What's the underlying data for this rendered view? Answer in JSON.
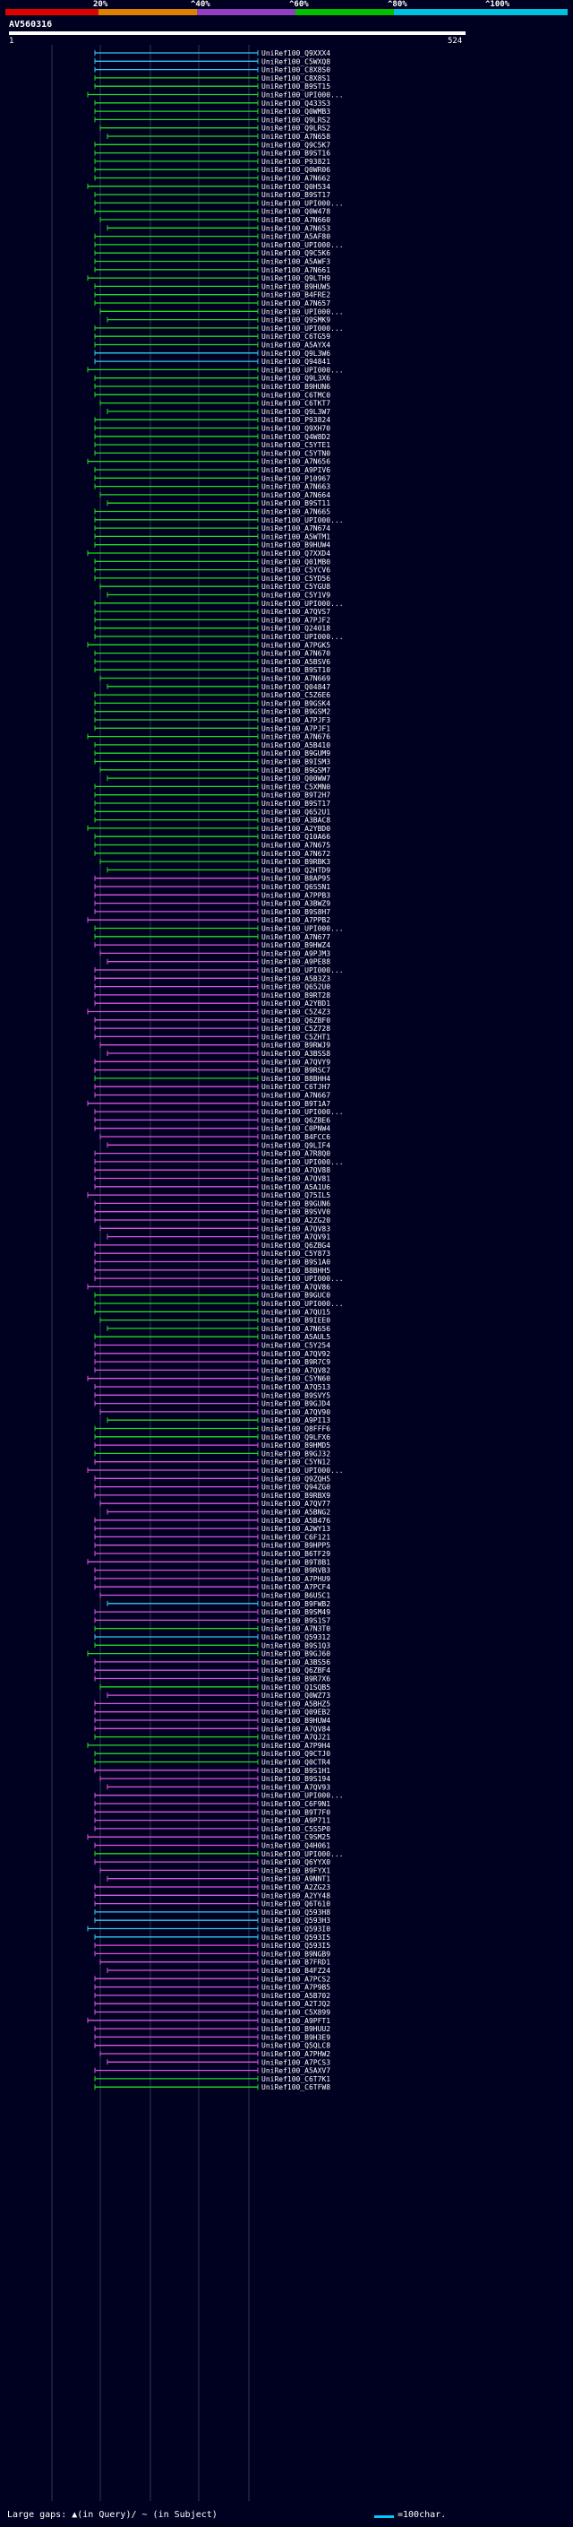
{
  "percent_scale": {
    "labels": [
      "20%",
      "^40%",
      "^60%",
      "^80%",
      "^100%"
    ],
    "colors": [
      "#e00000",
      "#e08000",
      "#9040c0",
      "#00c000",
      "#00c0e0"
    ]
  },
  "query": {
    "title": "AV560316",
    "start": "1",
    "end": "524"
  },
  "colors": {
    "background": "#000021",
    "green": "#22dd22",
    "cyan": "#33ccee",
    "magenta": "#dd55dd",
    "gap_dot": "#ffffff"
  },
  "hits": [
    {
      "label": "UniRef100_Q9XXX4",
      "type": "cyan"
    },
    {
      "label": "UniRef100_C5WXQ8",
      "type": "cyan"
    },
    {
      "label": "UniRef100_C8X8S0",
      "type": "cyan"
    },
    {
      "label": "UniRef100_C8X8S1",
      "type": "green"
    },
    {
      "label": "UniRef100_B9ST15",
      "type": "green"
    },
    {
      "label": "UniRef100_UPI000...",
      "type": "green"
    },
    {
      "label": "UniRef100_Q433S3",
      "type": "green"
    },
    {
      "label": "UniRef100_Q0WMB3",
      "type": "green"
    },
    {
      "label": "UniRef100_Q9LRS2",
      "type": "green"
    },
    {
      "label": "UniRef100_Q9LRS2",
      "type": "green"
    },
    {
      "label": "UniRef100_A7N658",
      "type": "green"
    },
    {
      "label": "UniRef100_Q9C5K7",
      "type": "green"
    },
    {
      "label": "UniRef100_B9ST16",
      "type": "green"
    },
    {
      "label": "UniRef100_P93821",
      "type": "green"
    },
    {
      "label": "UniRef100_Q0WR06",
      "type": "green"
    },
    {
      "label": "UniRef100_A7N662",
      "type": "green"
    },
    {
      "label": "UniRef100_Q0H534",
      "type": "green"
    },
    {
      "label": "UniRef100_B9ST17",
      "type": "green"
    },
    {
      "label": "UniRef100_UPI000...",
      "type": "green"
    },
    {
      "label": "UniRef100_Q0W478",
      "type": "green"
    },
    {
      "label": "UniRef100_A7N660",
      "type": "green"
    },
    {
      "label": "UniRef100_A7N653",
      "type": "green"
    },
    {
      "label": "UniRef100_A5AF80",
      "type": "green"
    },
    {
      "label": "UniRef100_UPI000...",
      "type": "green"
    },
    {
      "label": "UniRef100_Q9C5K6",
      "type": "green"
    },
    {
      "label": "UniRef100_A5AWF3",
      "type": "green"
    },
    {
      "label": "UniRef100_A7N661",
      "type": "green"
    },
    {
      "label": "UniRef100_Q9LTH9",
      "type": "green"
    },
    {
      "label": "UniRef100_B9HUW5",
      "type": "green"
    },
    {
      "label": "UniRef100_B4FRE2",
      "type": "green"
    },
    {
      "label": "UniRef100_A7N657",
      "type": "green"
    },
    {
      "label": "UniRef100_UPI000...",
      "type": "green"
    },
    {
      "label": "UniRef100_Q9SMK9",
      "type": "green"
    },
    {
      "label": "UniRef100_UPI000...",
      "type": "green"
    },
    {
      "label": "UniRef100_C6TG59",
      "type": "green"
    },
    {
      "label": "UniRef100_A5AYX4",
      "type": "green"
    },
    {
      "label": "UniRef100_Q9L3W6",
      "type": "cyan"
    },
    {
      "label": "UniRef100_Q94841",
      "type": "cyan"
    },
    {
      "label": "UniRef100_UPI000...",
      "type": "green"
    },
    {
      "label": "UniRef100_Q9L3X6",
      "type": "green"
    },
    {
      "label": "UniRef100_B9HUN6",
      "type": "green"
    },
    {
      "label": "UniRef100_C6TMC0",
      "type": "green"
    },
    {
      "label": "UniRef100_C6TKT7",
      "type": "green"
    },
    {
      "label": "UniRef100_Q9L3W7",
      "type": "green"
    },
    {
      "label": "UniRef100_P93824",
      "type": "green"
    },
    {
      "label": "UniRef100_Q9XH70",
      "type": "green"
    },
    {
      "label": "UniRef100_Q4W8D2",
      "type": "green"
    },
    {
      "label": "UniRef100_C5YTE1",
      "type": "green"
    },
    {
      "label": "UniRef100_C5YTN0",
      "type": "green"
    },
    {
      "label": "UniRef100_A7N656",
      "type": "green"
    },
    {
      "label": "UniRef100_A9PIV6",
      "type": "green"
    },
    {
      "label": "UniRef100_P10967",
      "type": "green"
    },
    {
      "label": "UniRef100_A7N663",
      "type": "green"
    },
    {
      "label": "UniRef100_A7N664",
      "type": "green"
    },
    {
      "label": "UniRef100_B9ST11",
      "type": "green"
    },
    {
      "label": "UniRef100_A7N665",
      "type": "green"
    },
    {
      "label": "UniRef100_UPI000...",
      "type": "green"
    },
    {
      "label": "UniRef100_A7N674",
      "type": "green"
    },
    {
      "label": "UniRef100_A5WTM1",
      "type": "green"
    },
    {
      "label": "UniRef100_B9HUW4",
      "type": "green"
    },
    {
      "label": "UniRef100_Q7XXD4",
      "type": "green"
    },
    {
      "label": "UniRef100_Q01MB0",
      "type": "green"
    },
    {
      "label": "UniRef100_C5YCV6",
      "type": "green"
    },
    {
      "label": "UniRef100_C5YD56",
      "type": "green"
    },
    {
      "label": "UniRef100_C5YGU8",
      "type": "green"
    },
    {
      "label": "UniRef100_C5Y1V9",
      "type": "green"
    },
    {
      "label": "UniRef100_UPI000...",
      "type": "green"
    },
    {
      "label": "UniRef100_A7QVS7",
      "type": "green"
    },
    {
      "label": "UniRef100_A7PJF2",
      "type": "green"
    },
    {
      "label": "UniRef100_Q24018",
      "type": "green"
    },
    {
      "label": "UniRef100_UPI000...",
      "type": "green"
    },
    {
      "label": "UniRef100_A7PGK5",
      "type": "green"
    },
    {
      "label": "UniRef100_A7N670",
      "type": "green"
    },
    {
      "label": "UniRef100_A5BSV6",
      "type": "green"
    },
    {
      "label": "UniRef100_B9ST10",
      "type": "green"
    },
    {
      "label": "UniRef100_A7N669",
      "type": "green"
    },
    {
      "label": "UniRef100_Q04847",
      "type": "green"
    },
    {
      "label": "UniRef100_C5Z6E6",
      "type": "green"
    },
    {
      "label": "UniRef100_B9GSK4",
      "type": "green"
    },
    {
      "label": "UniRef100_B9GSM2",
      "type": "green"
    },
    {
      "label": "UniRef100_A7PJF3",
      "type": "green"
    },
    {
      "label": "UniRef100_A7PJF1",
      "type": "green"
    },
    {
      "label": "UniRef100_A7N676",
      "type": "green"
    },
    {
      "label": "UniRef100_A5B410",
      "type": "green"
    },
    {
      "label": "UniRef100_B9GUM9",
      "type": "green"
    },
    {
      "label": "UniRef100_B9ISM3",
      "type": "green"
    },
    {
      "label": "UniRef100_B9GSM7",
      "type": "green"
    },
    {
      "label": "UniRef100_Q00WW7",
      "type": "green"
    },
    {
      "label": "UniRef100_C5XMN0",
      "type": "green"
    },
    {
      "label": "UniRef100_B9T2H7",
      "type": "green"
    },
    {
      "label": "UniRef100_B9ST17",
      "type": "green"
    },
    {
      "label": "UniRef100_Q652U1",
      "type": "green"
    },
    {
      "label": "UniRef100_A3BAC8",
      "type": "green"
    },
    {
      "label": "UniRef100_A2YBD0",
      "type": "green"
    },
    {
      "label": "UniRef100_Q10A66",
      "type": "green"
    },
    {
      "label": "UniRef100_A7N675",
      "type": "green"
    },
    {
      "label": "UniRef100_A7N672",
      "type": "green"
    },
    {
      "label": "UniRef100_B9RBK3",
      "type": "green"
    },
    {
      "label": "UniRef100_Q2HTD9",
      "type": "green"
    },
    {
      "label": "UniRef100_B8AP95",
      "type": "magenta"
    },
    {
      "label": "UniRef100_Q6S5N1",
      "type": "magenta"
    },
    {
      "label": "UniRef100_A7PPB3",
      "type": "magenta"
    },
    {
      "label": "UniRef100_A3BWZ9",
      "type": "magenta"
    },
    {
      "label": "UniRef100_B9S8H7",
      "type": "magenta"
    },
    {
      "label": "UniRef100_A7PPB2",
      "type": "magenta"
    },
    {
      "label": "UniRef100_UPI000...",
      "type": "green"
    },
    {
      "label": "UniRef100_A7N677",
      "type": "green"
    },
    {
      "label": "UniRef100_B9HWZ4",
      "type": "magenta"
    },
    {
      "label": "UniRef100_A9PJM3",
      "type": "magenta"
    },
    {
      "label": "UniRef100_A9PE88",
      "type": "magenta"
    },
    {
      "label": "UniRef100_UPI000...",
      "type": "magenta"
    },
    {
      "label": "UniRef100_A5B3Z3",
      "type": "magenta"
    },
    {
      "label": "UniRef100_Q652U0",
      "type": "magenta"
    },
    {
      "label": "UniRef100_B9RT28",
      "type": "magenta"
    },
    {
      "label": "UniRef100_A2YBD1",
      "type": "magenta"
    },
    {
      "label": "UniRef100_C5Z4Z3",
      "type": "magenta"
    },
    {
      "label": "UniRef100_Q6ZBF0",
      "type": "magenta"
    },
    {
      "label": "UniRef100_C5Z728",
      "type": "magenta"
    },
    {
      "label": "UniRef100_C5ZHT1",
      "type": "magenta"
    },
    {
      "label": "UniRef100_B9RWJ9",
      "type": "magenta"
    },
    {
      "label": "UniRef100_A3BSS8",
      "type": "magenta"
    },
    {
      "label": "UniRef100_A7QVY9",
      "type": "magenta"
    },
    {
      "label": "UniRef100_B9RSC7",
      "type": "magenta"
    },
    {
      "label": "UniRef100_B8BHH4",
      "type": "green"
    },
    {
      "label": "UniRef100_C6TJH7",
      "type": "magenta"
    },
    {
      "label": "UniRef100_A7N667",
      "type": "magenta"
    },
    {
      "label": "UniRef100_B9T1A7",
      "type": "magenta"
    },
    {
      "label": "UniRef100_UPI000...",
      "type": "magenta"
    },
    {
      "label": "UniRef100_Q6ZBE6",
      "type": "magenta"
    },
    {
      "label": "UniRef100_C0PNW4",
      "type": "magenta"
    },
    {
      "label": "UniRef100_B4FCC6",
      "type": "magenta"
    },
    {
      "label": "UniRef100_Q9LIF4",
      "type": "magenta"
    },
    {
      "label": "UniRef100_A7R8Q0",
      "type": "magenta"
    },
    {
      "label": "UniRef100_UPI000...",
      "type": "magenta"
    },
    {
      "label": "UniRef100_A7QV88",
      "type": "magenta"
    },
    {
      "label": "UniRef100_A7QV81",
      "type": "magenta"
    },
    {
      "label": "UniRef100_A5A1U6",
      "type": "magenta"
    },
    {
      "label": "UniRef100_Q75IL5",
      "type": "magenta"
    },
    {
      "label": "UniRef100_B9GUN6",
      "type": "magenta"
    },
    {
      "label": "UniRef100_B9SVV0",
      "type": "magenta"
    },
    {
      "label": "UniRef100_A2ZG20",
      "type": "magenta"
    },
    {
      "label": "UniRef100_A7QV83",
      "type": "magenta"
    },
    {
      "label": "UniRef100_A7QV91",
      "type": "magenta"
    },
    {
      "label": "UniRef100_Q6ZBG4",
      "type": "magenta"
    },
    {
      "label": "UniRef100_C5Y873",
      "type": "magenta"
    },
    {
      "label": "UniRef100_B9S1A0",
      "type": "magenta"
    },
    {
      "label": "UniRef100_B8BHH5",
      "type": "magenta"
    },
    {
      "label": "UniRef100_UPI000...",
      "type": "magenta"
    },
    {
      "label": "UniRef100_A7QV86",
      "type": "magenta"
    },
    {
      "label": "UniRef100_B9GUC0",
      "type": "green"
    },
    {
      "label": "UniRef100_UPI000...",
      "type": "green"
    },
    {
      "label": "UniRef100_A7QU15",
      "type": "green"
    },
    {
      "label": "UniRef100_B9IEE0",
      "type": "green"
    },
    {
      "label": "UniRef100_A7N656",
      "type": "green"
    },
    {
      "label": "UniRef100_A5AUL5",
      "type": "green"
    },
    {
      "label": "UniRef100_C5Y254",
      "type": "magenta"
    },
    {
      "label": "UniRef100_A7QV92",
      "type": "magenta"
    },
    {
      "label": "UniRef100_B9R7C9",
      "type": "magenta"
    },
    {
      "label": "UniRef100_A7QV82",
      "type": "magenta"
    },
    {
      "label": "UniRef100_C5YN60",
      "type": "magenta"
    },
    {
      "label": "UniRef100_A7Q513",
      "type": "magenta"
    },
    {
      "label": "UniRef100_B9SVY5",
      "type": "magenta"
    },
    {
      "label": "UniRef100_B9GJD4",
      "type": "magenta"
    },
    {
      "label": "UniRef100_A7QV90",
      "type": "magenta"
    },
    {
      "label": "UniRef100_A9PI13",
      "type": "green"
    },
    {
      "label": "UniRef100_Q8FFF6",
      "type": "green"
    },
    {
      "label": "UniRef100_Q9LFX6",
      "type": "green"
    },
    {
      "label": "UniRef100_B9HMD5",
      "type": "magenta"
    },
    {
      "label": "UniRef100_B9GJ32",
      "type": "green"
    },
    {
      "label": "UniRef100_C5YN12",
      "type": "magenta"
    },
    {
      "label": "UniRef100_UPI000...",
      "type": "magenta"
    },
    {
      "label": "UniRef100_Q9ZQH5",
      "type": "magenta"
    },
    {
      "label": "UniRef100_Q94ZG0",
      "type": "magenta"
    },
    {
      "label": "UniRef100_B9RBX9",
      "type": "magenta"
    },
    {
      "label": "UniRef100_A7QV77",
      "type": "magenta"
    },
    {
      "label": "UniRef100_A5BNG2",
      "type": "magenta"
    },
    {
      "label": "UniRef100_A5B476",
      "type": "magenta"
    },
    {
      "label": "UniRef100_A2WY13",
      "type": "magenta"
    },
    {
      "label": "UniRef100_C6F121",
      "type": "magenta"
    },
    {
      "label": "UniRef100_B9HPP5",
      "type": "magenta"
    },
    {
      "label": "UniRef100_B6TF29",
      "type": "magenta"
    },
    {
      "label": "UniRef100_B9T8B1",
      "type": "magenta"
    },
    {
      "label": "UniRef100_B9RVB3",
      "type": "magenta"
    },
    {
      "label": "UniRef100_A7PHU9",
      "type": "magenta"
    },
    {
      "label": "UniRef100_A7PCF4",
      "type": "magenta"
    },
    {
      "label": "UniRef100_B6U5C1",
      "type": "magenta"
    },
    {
      "label": "UniRef100_B9FWB2",
      "type": "cyan"
    },
    {
      "label": "UniRef100_B9SM49",
      "type": "magenta"
    },
    {
      "label": "UniRef100_B9S1S7",
      "type": "magenta"
    },
    {
      "label": "UniRef100_A7N3T0",
      "type": "green"
    },
    {
      "label": "UniRef100_Q59312",
      "type": "cyan"
    },
    {
      "label": "UniRef100_B9S1Q3",
      "type": "green"
    },
    {
      "label": "UniRef100_B9GJ60",
      "type": "green"
    },
    {
      "label": "UniRef100_A3BS56",
      "type": "magenta"
    },
    {
      "label": "UniRef100_Q6ZBF4",
      "type": "magenta"
    },
    {
      "label": "UniRef100_B9R7X6",
      "type": "magenta"
    },
    {
      "label": "UniRef100_Q1SQB5",
      "type": "green"
    },
    {
      "label": "UniRef100_Q0WZ73",
      "type": "magenta"
    },
    {
      "label": "UniRef100_A5BHZ5",
      "type": "magenta"
    },
    {
      "label": "UniRef100_Q09EB2",
      "type": "magenta"
    },
    {
      "label": "UniRef100_B9HUW4",
      "type": "magenta"
    },
    {
      "label": "UniRef100_A7QV84",
      "type": "magenta"
    },
    {
      "label": "UniRef100_A7QJ21",
      "type": "green"
    },
    {
      "label": "UniRef100_A7P9H4",
      "type": "green"
    },
    {
      "label": "UniRef100_Q9CTJ0",
      "type": "green"
    },
    {
      "label": "UniRef100_Q0CTR4",
      "type": "green"
    },
    {
      "label": "UniRef100_B9S1H1",
      "type": "magenta"
    },
    {
      "label": "UniRef100_B9S194",
      "type": "magenta"
    },
    {
      "label": "UniRef100_A7QV93",
      "type": "magenta"
    },
    {
      "label": "UniRef100_UPI000...",
      "type": "magenta"
    },
    {
      "label": "UniRef100_C6F9N1",
      "type": "magenta"
    },
    {
      "label": "UniRef100_B9T7F0",
      "type": "magenta"
    },
    {
      "label": "UniRef100_A9P711",
      "type": "magenta"
    },
    {
      "label": "UniRef100_C5S5P0",
      "type": "magenta"
    },
    {
      "label": "UniRef100_C9SM25",
      "type": "magenta"
    },
    {
      "label": "UniRef100_Q4H061",
      "type": "magenta"
    },
    {
      "label": "UniRef100_UPI000...",
      "type": "green"
    },
    {
      "label": "UniRef100_Q6YYX0",
      "type": "magenta"
    },
    {
      "label": "UniRef100_B9FYX1",
      "type": "magenta"
    },
    {
      "label": "UniRef100_A9NNT1",
      "type": "magenta"
    },
    {
      "label": "UniRef100_A2ZG23",
      "type": "magenta"
    },
    {
      "label": "UniRef100_A2YY48",
      "type": "magenta"
    },
    {
      "label": "UniRef100_Q6T610",
      "type": "magenta"
    },
    {
      "label": "UniRef100_Q593H8",
      "type": "cyan"
    },
    {
      "label": "UniRef100_Q593H3",
      "type": "cyan"
    },
    {
      "label": "UniRef100_Q593I0",
      "type": "cyan"
    },
    {
      "label": "UniRef100_Q593I5",
      "type": "cyan"
    },
    {
      "label": "UniRef100_Q593I5",
      "type": "magenta"
    },
    {
      "label": "UniRef100_B9NGB9",
      "type": "magenta"
    },
    {
      "label": "UniRef100_B7FRD1",
      "type": "magenta"
    },
    {
      "label": "UniRef100_B4FZ24",
      "type": "magenta"
    },
    {
      "label": "UniRef100_A7PCS2",
      "type": "magenta"
    },
    {
      "label": "UniRef100_A7P9B5",
      "type": "magenta"
    },
    {
      "label": "UniRef100_A5B702",
      "type": "magenta"
    },
    {
      "label": "UniRef100_A2TJQ2",
      "type": "magenta"
    },
    {
      "label": "UniRef100_C5X899",
      "type": "magenta"
    },
    {
      "label": "UniRef100_A9PFT1",
      "type": "magenta"
    },
    {
      "label": "UniRef100_B9HUU2",
      "type": "magenta"
    },
    {
      "label": "UniRef100_B9H3E9",
      "type": "magenta"
    },
    {
      "label": "UniRef100_Q5QLC8",
      "type": "magenta"
    },
    {
      "label": "UniRef100_A7PHW2",
      "type": "magenta"
    },
    {
      "label": "UniRef100_A7PCS3",
      "type": "magenta"
    },
    {
      "label": "UniRef100_A5AXV7",
      "type": "magenta"
    },
    {
      "label": "UniRef100_C6T7K1",
      "type": "green"
    },
    {
      "label": "UniRef100_C6TFW8",
      "type": "green"
    }
  ],
  "footer": {
    "left": "Large gaps: ▲(in Query)/ ~ (in Subject)",
    "right": "=100char."
  }
}
